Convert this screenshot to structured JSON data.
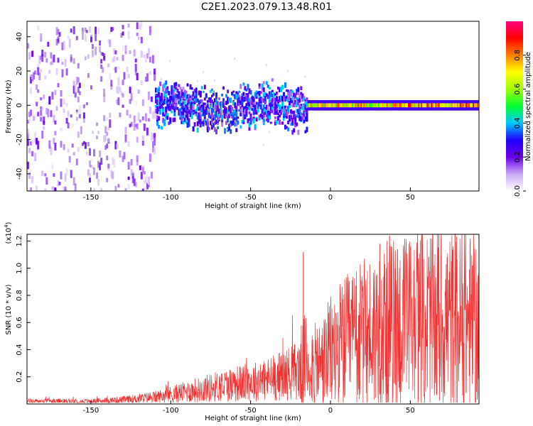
{
  "title": "C2E1.2023.079.13.48.R01",
  "chart_data": [
    {
      "type": "heatmap",
      "xlabel": "Height of straight line (km)",
      "ylabel": "Frequency (Hz)",
      "xlim": [
        -190,
        93
      ],
      "ylim": [
        -50,
        49
      ],
      "xticks": [
        -150,
        -100,
        -50,
        0,
        50
      ],
      "xtick_labels": [
        "-150",
        "-100",
        "-50",
        "0",
        "50"
      ],
      "yticks": [
        -40,
        -20,
        0,
        20,
        40
      ],
      "ytick_labels": [
        "-40",
        "-20",
        "0",
        "20",
        "40"
      ],
      "colorbar": {
        "label": "Normalized spectral amplitude",
        "range": [
          0,
          1
        ],
        "ticks": [
          0,
          0.2,
          0.4,
          0.6,
          0.8
        ],
        "tick_labels": [
          "0.0",
          "0.2",
          "0.4",
          "0.6",
          "0.8"
        ],
        "colormap": [
          "#ffffff",
          "#c9a8f5",
          "#6a00e8",
          "#1f00ff",
          "#00c8ff",
          "#00ff33",
          "#a0ff00",
          "#ffff00",
          "#ff8000",
          "#ff0000",
          "#ff007f"
        ]
      },
      "regions": [
        {
          "x": [
            -190,
            -110
          ],
          "freq_spread": "full band",
          "amplitude": "low, scattered"
        },
        {
          "x": [
            -110,
            -15
          ],
          "freq_center": 0,
          "freq_halfwidth": 12,
          "amplitude": "0.2-0.5"
        },
        {
          "x": [
            -15,
            93
          ],
          "freq_center": 0,
          "freq_halfwidth": 3,
          "amplitude": "0.5-0.9"
        }
      ]
    },
    {
      "type": "line",
      "xlabel": "Height of straight line (km)",
      "ylabel": "SNR (10 * v/v)",
      "y_multiplier": "(x10",
      "y_multiplier_exp": "4",
      "y_multiplier_close": ")",
      "xlim": [
        -190,
        93
      ],
      "ylim": [
        0,
        1.25
      ],
      "xticks": [
        -150,
        -100,
        -50,
        0,
        50
      ],
      "xtick_labels": [
        "-150",
        "-100",
        "-50",
        "0",
        "50"
      ],
      "yticks": [
        0.2,
        0.4,
        0.6,
        0.8,
        1.0,
        1.2
      ],
      "ytick_labels": [
        "0.2",
        "0.4",
        "0.6",
        "0.8",
        "1.0",
        "1.2"
      ],
      "color": "#ee3333",
      "series": [
        {
          "name": "SNR",
          "x": [
            -190,
            -170,
            -150,
            -130,
            -120,
            -110,
            -100,
            -90,
            -80,
            -70,
            -60,
            -50,
            -40,
            -30,
            -20,
            -15,
            -10,
            -5,
            0,
            5,
            10,
            20,
            30,
            40,
            50,
            60,
            70,
            80,
            93
          ],
          "y": [
            0.02,
            0.02,
            0.02,
            0.03,
            0.04,
            0.05,
            0.07,
            0.09,
            0.11,
            0.13,
            0.15,
            0.16,
            0.18,
            0.21,
            0.25,
            0.33,
            0.28,
            0.3,
            0.38,
            0.42,
            0.45,
            0.5,
            0.55,
            0.58,
            0.6,
            0.62,
            0.62,
            0.6,
            0.6
          ]
        }
      ],
      "spikes": [
        {
          "x": -17,
          "y": 1.12
        },
        {
          "x": 37,
          "y": 1.24
        },
        {
          "x": 31,
          "y": 1.18
        },
        {
          "x": 42,
          "y": 1.14
        },
        {
          "x": 55,
          "y": 1.07
        },
        {
          "x": 89,
          "y": 1.02
        }
      ]
    }
  ]
}
